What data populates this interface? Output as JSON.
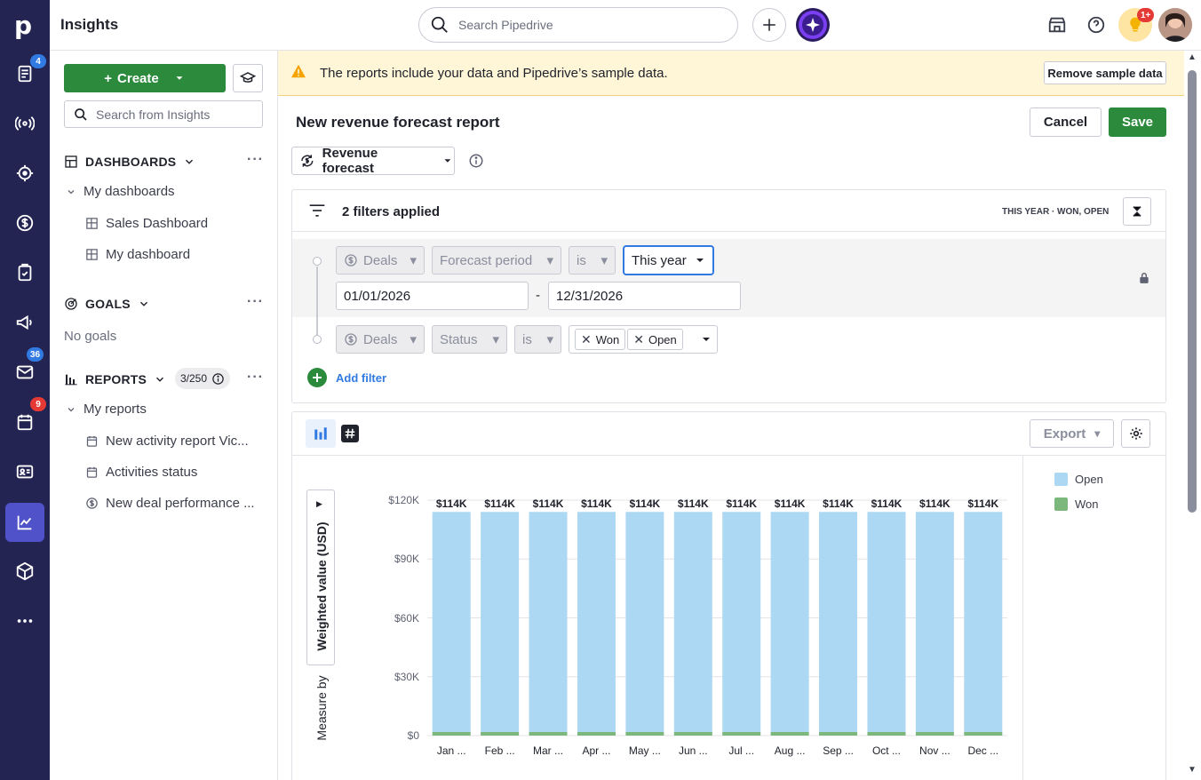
{
  "app": {
    "title": "Insights"
  },
  "rail": {
    "badges": {
      "deals": "4",
      "mail": "36",
      "calendar": "9"
    }
  },
  "topbar": {
    "search_placeholder": "Search Pipedrive",
    "notif_badge": "1+"
  },
  "sidebar": {
    "create_label": "Create",
    "search_placeholder": "Search from Insights",
    "dashboards": {
      "heading": "DASHBOARDS",
      "group": "My dashboards",
      "items": [
        "Sales Dashboard",
        "My dashboard"
      ]
    },
    "goals": {
      "heading": "GOALS",
      "empty": "No goals"
    },
    "reports": {
      "heading": "REPORTS",
      "count": "3/250",
      "group": "My reports",
      "items": [
        "New activity report Vic...",
        "Activities status",
        "New deal performance ..."
      ]
    }
  },
  "banner": {
    "text": "The reports include your data and Pipedrive’s sample data.",
    "remove_label": "Remove sample data"
  },
  "report": {
    "title": "New revenue forecast report",
    "cancel_label": "Cancel",
    "save_label": "Save",
    "type_label": "Revenue forecast"
  },
  "filters": {
    "summary": "2 filters applied",
    "tags": "THIS YEAR · WON, OPEN",
    "row1": {
      "entity": "Deals",
      "field": "Forecast period",
      "op": "is",
      "value": "This year",
      "from": "01/01/2026",
      "to": "12/31/2026",
      "sep": "-"
    },
    "row2": {
      "entity": "Deals",
      "field": "Status",
      "op": "is",
      "values": [
        "Won",
        "Open"
      ]
    },
    "add_label": "Add filter"
  },
  "chart_toolbar": {
    "export_label": "Export"
  },
  "chart_data": {
    "type": "bar",
    "stacked": true,
    "ylabel": "Weighted value (USD)",
    "ylabel_prefix": "Measure by",
    "yticks": [
      "$0",
      "$30K",
      "$60K",
      "$90K",
      "$120K"
    ],
    "ylim": [
      0,
      120000
    ],
    "categories": [
      "Jan ...",
      "Feb ...",
      "Mar ...",
      "Apr ...",
      "May ...",
      "Jun ...",
      "Jul ...",
      "Aug ...",
      "Sep ...",
      "Oct ...",
      "Nov ...",
      "Dec ..."
    ],
    "series": [
      {
        "name": "Won",
        "color": "#7cb77b",
        "values": [
          1500,
          1500,
          1500,
          1500,
          1500,
          1500,
          1500,
          1500,
          1500,
          1500,
          1500,
          1500
        ]
      },
      {
        "name": "Open",
        "color": "#acd8f3",
        "values": [
          112500,
          112500,
          112500,
          112500,
          112500,
          112500,
          112500,
          112500,
          112500,
          112500,
          112500,
          112500
        ]
      }
    ],
    "data_labels": [
      "$114K",
      "$114K",
      "$114K",
      "$114K",
      "$114K",
      "$114K",
      "$114K",
      "$114K",
      "$114K",
      "$114K",
      "$114K",
      "$114K"
    ],
    "legend": [
      "Open",
      "Won"
    ],
    "legend_position": "right",
    "grid": true
  }
}
